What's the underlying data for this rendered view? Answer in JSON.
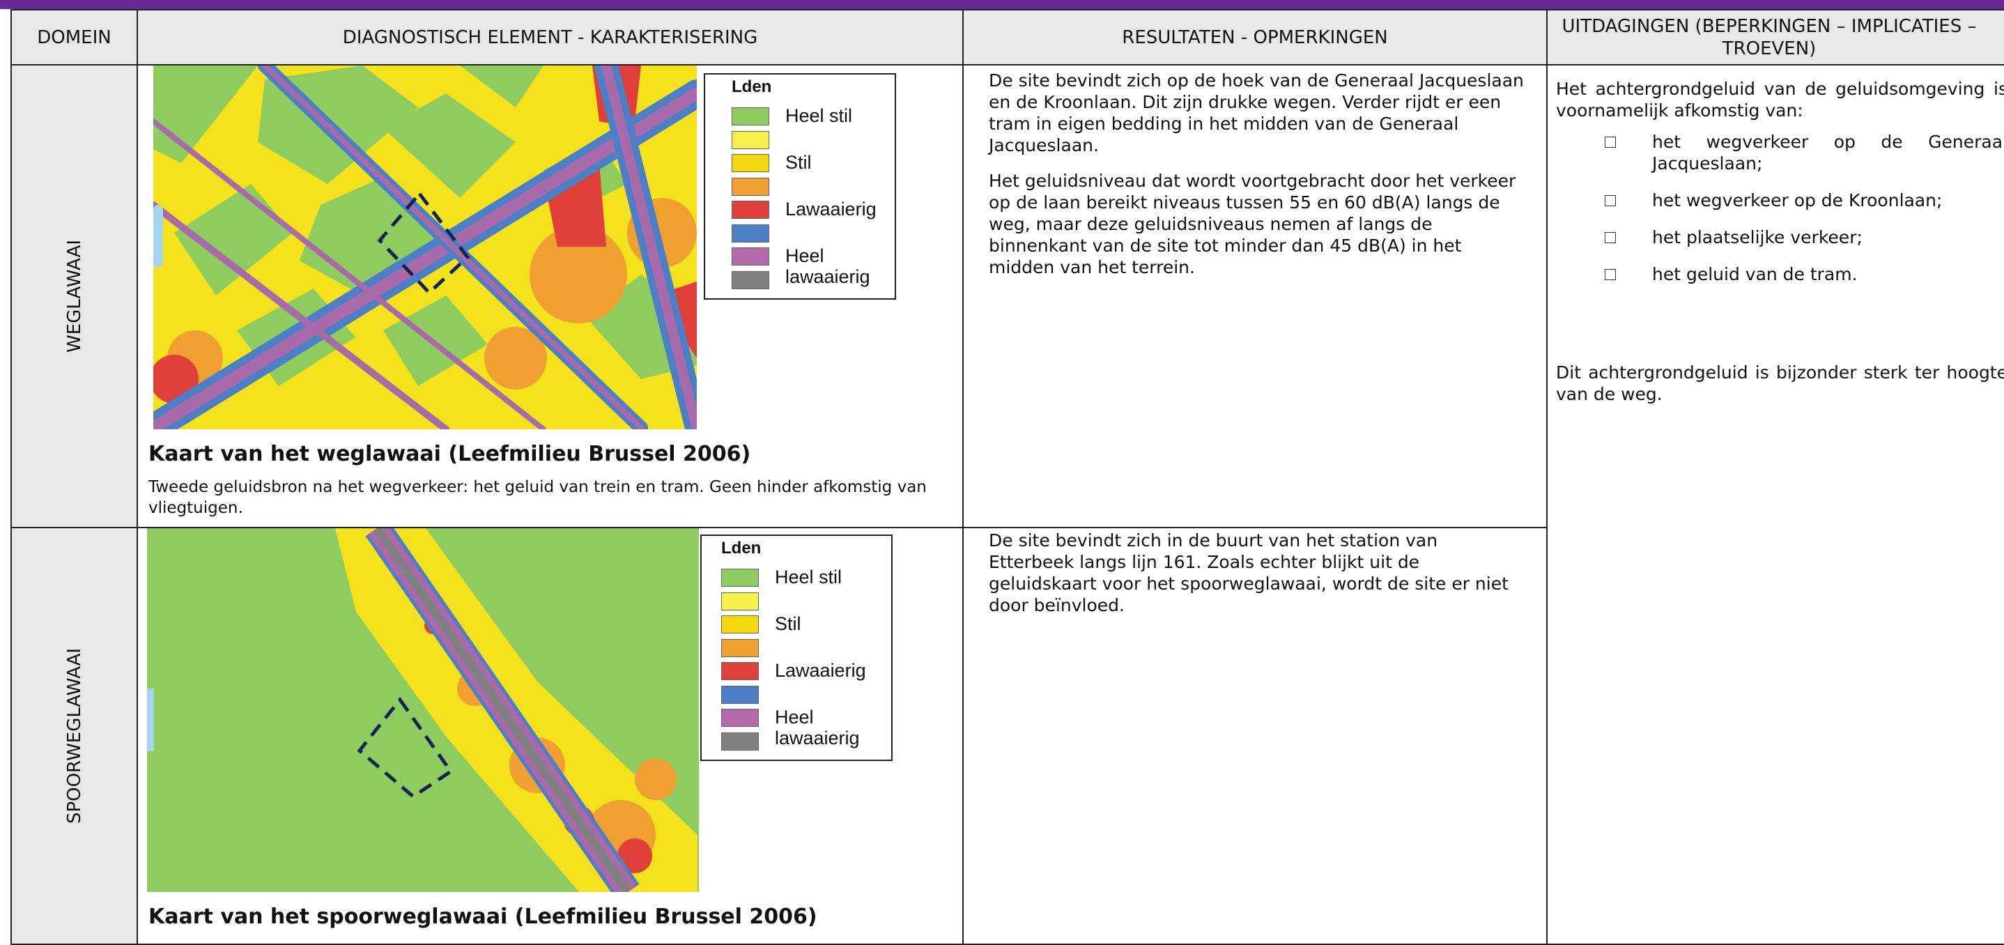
{
  "header": {
    "columns": [
      "DOMEIN",
      "DIAGNOSTISCH ELEMENT - KARAKTERISERING",
      "RESULTATEN - OPMERKINGEN",
      "UITDAGINGEN (BEPERKINGEN – IMPLICATIES – TROEVEN)"
    ]
  },
  "legend": {
    "title": "Lden",
    "labels": [
      "Heel stil",
      "Stil",
      "Lawaaierig",
      "Heel lawaaierig"
    ]
  },
  "rows": [
    {
      "domain": "WEGLAWAAI",
      "caption": "Kaart van het weglawaai (Leefmilieu Brussel 2006)",
      "note": "Tweede geluidsbron na het wegverkeer: het geluid van trein en tram. Geen hinder afkomstig van vliegtuigen.",
      "results": [
        "De site bevindt zich op de hoek van de Generaal Jacqueslaan en de Kroonlaan. Dit zijn drukke wegen. Verder rijdt er een tram in eigen bedding in het midden van de Generaal Jacqueslaan.",
        "Het geluidsniveau dat wordt voortgebracht door het verkeer op de laan bereikt niveaus tussen 55 en 60 dB(A) langs de weg, maar deze geluidsniveaus nemen af langs de binnenkant van de site tot minder dan 45 dB(A) in het midden van het terrein."
      ]
    },
    {
      "domain": "SPOORWEGLAWAAI",
      "caption": "Kaart van het spoorweglawaai (Leefmilieu Brussel 2006)",
      "results": [
        "De site bevindt zich in de buurt van het station van Etterbeek langs lijn 161. Zoals echter blijkt uit de geluidskaart voor het spoorweglawaai, wordt de site er niet door beïnvloed."
      ]
    }
  ],
  "challenges": {
    "intro": "Het achtergrondgeluid van de geluidsomgeving is voornamelijk afkomstig van:",
    "items": [
      "het wegverkeer op de Generaal Jacqueslaan;",
      "het wegverkeer op de Kroonlaan;",
      "het plaatselijke verkeer;",
      "het geluid van de tram."
    ],
    "conclusion": "Dit achtergrondgeluid is bijzonder sterk ter hoogte van de weg."
  }
}
